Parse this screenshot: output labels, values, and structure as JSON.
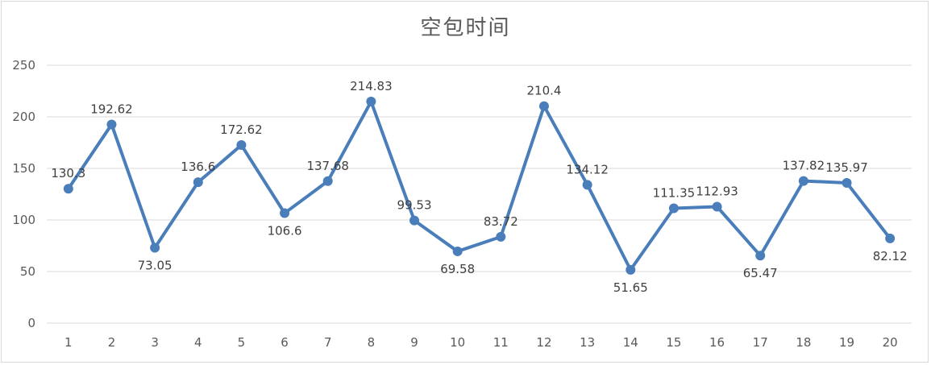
{
  "chart_data": {
    "type": "line",
    "title": "空包时间",
    "xlabel": "",
    "ylabel": "",
    "categories": [
      "1",
      "2",
      "3",
      "4",
      "5",
      "6",
      "7",
      "8",
      "9",
      "10",
      "11",
      "12",
      "13",
      "14",
      "15",
      "16",
      "17",
      "18",
      "19",
      "20"
    ],
    "y_ticks": [
      "0",
      "50",
      "100",
      "150",
      "200",
      "250"
    ],
    "ylim": [
      0,
      250
    ],
    "grid": true,
    "legend": "none",
    "series": [
      {
        "values": [
          130.3,
          192.62,
          73.05,
          136.6,
          172.62,
          106.6,
          137.68,
          214.83,
          99.53,
          69.58,
          83.72,
          210.4,
          134.12,
          51.65,
          111.35,
          112.93,
          65.47,
          137.82,
          135.97,
          82.12
        ],
        "labels": [
          "130.3",
          "192.62",
          "73.05",
          "136.6",
          "172.62",
          "106.6",
          "137.68",
          "214.83",
          "99.53",
          "69.58",
          "83.72",
          "210.4",
          "134.12",
          "51.65",
          "111.35",
          "112.93",
          "65.47",
          "137.82",
          "135.97",
          "82.12"
        ],
        "color": "#4a7ebb"
      }
    ],
    "colors": {
      "line": "#4a7ebb",
      "grid": "#d9d9d9",
      "text": "#595959"
    }
  }
}
